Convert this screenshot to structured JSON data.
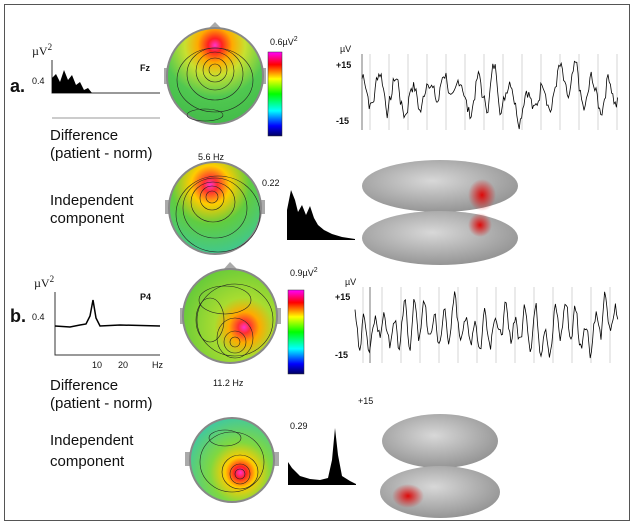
{
  "panels": [
    {
      "label": "a.",
      "spectrum": {
        "unit": {
          "base": "µV",
          "power": "2"
        },
        "y_label": "0.4",
        "channel": "Fz"
      },
      "difference": {
        "line1": "Difference",
        "line2": "(patient - norm)"
      },
      "topomap": {
        "colorbar_max": {
          "base": "0.6µV",
          "power": "2"
        },
        "frequency": "5.6 Hz"
      },
      "eeg": {
        "unit": "µV",
        "top": "+15",
        "bottom": "-15"
      },
      "component": {
        "line1": "Independent",
        "line2": "component",
        "peak": "0.22"
      }
    },
    {
      "label": "b.",
      "spectrum": {
        "unit": {
          "base": "µV",
          "power": "2"
        },
        "y_label": "0.4",
        "channel": "P4",
        "x_labels": [
          "10",
          "20",
          "Hz"
        ]
      },
      "difference": {
        "line1": "Difference",
        "line2": "(patient - norm)"
      },
      "topomap": {
        "colorbar_max": {
          "base": "0.9µV",
          "power": "2"
        },
        "frequency": "11.2 Hz"
      },
      "eeg": {
        "unit": "µV",
        "top": "+15",
        "bottom": "-15"
      },
      "extra_label": "+15",
      "component": {
        "line1": "Independent",
        "line2": "component",
        "peak": "0.29"
      }
    }
  ]
}
